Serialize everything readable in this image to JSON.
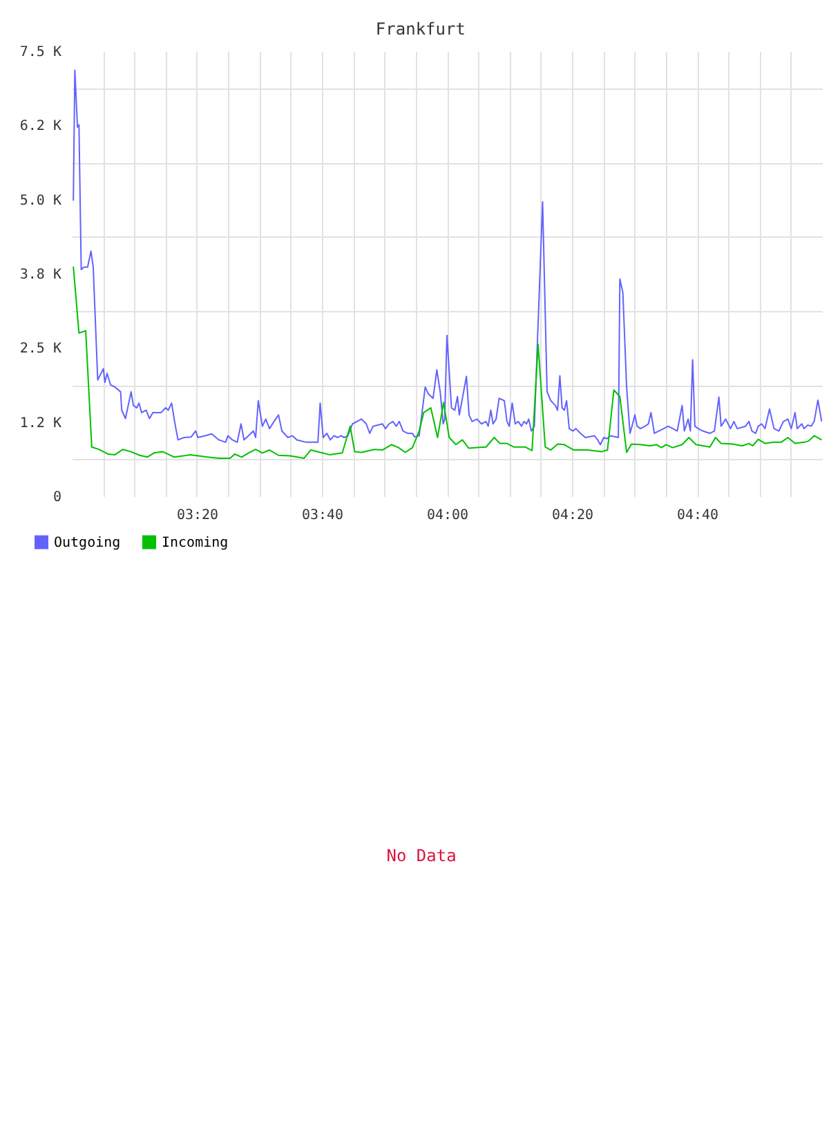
{
  "chart_data": [
    {
      "type": "line",
      "title": "Frankfurt",
      "xlim": [
        3.0,
        5.0
      ],
      "xticks": [
        {
          "value": 3.0833,
          "label": null
        },
        {
          "value": 3.1667,
          "label": null
        },
        {
          "value": 3.25,
          "label": null
        },
        {
          "value": 3.3333,
          "label": "03:20"
        },
        {
          "value": 3.4167,
          "label": null
        },
        {
          "value": 3.5,
          "label": null
        },
        {
          "value": 3.5833,
          "label": null
        },
        {
          "value": 3.6667,
          "label": "03:40"
        },
        {
          "value": 3.75,
          "label": null
        },
        {
          "value": 3.8333,
          "label": null
        },
        {
          "value": 3.9167,
          "label": null
        },
        {
          "value": 4.0,
          "label": "04:00"
        },
        {
          "value": 4.0833,
          "label": null
        },
        {
          "value": 4.1667,
          "label": null
        },
        {
          "value": 4.25,
          "label": null
        },
        {
          "value": 4.3333,
          "label": "04:20"
        },
        {
          "value": 4.4167,
          "label": null
        },
        {
          "value": 4.5,
          "label": null
        },
        {
          "value": 4.5833,
          "label": null
        },
        {
          "value": 4.6667,
          "label": "04:40"
        },
        {
          "value": 4.75,
          "label": null
        },
        {
          "value": 4.8333,
          "label": null
        },
        {
          "value": 4.9167,
          "label": null
        }
      ],
      "ylim": [
        0,
        7500
      ],
      "yticks": [
        0,
        {
          "value": 625,
          "label": null
        },
        {
          "value": 1250,
          "label": "1.2 K"
        },
        {
          "value": 1875,
          "label": null
        },
        {
          "value": 2500,
          "label": "2.5 K"
        },
        {
          "value": 3125,
          "label": null
        },
        {
          "value": 3750,
          "label": "3.8 K"
        },
        {
          "value": 4375,
          "label": null
        },
        {
          "value": 5000,
          "label": "5.0 K"
        },
        {
          "value": 5625,
          "label": null
        },
        {
          "value": 6250,
          "label": "6.2 K"
        },
        {
          "value": 6875,
          "label": null
        },
        {
          "value": 7500,
          "label": "7.5 K"
        }
      ],
      "grid": true,
      "legend": "bottom",
      "series": [
        {
          "name": "Outgoing",
          "color": "#6262ff",
          "x": [
            3.004,
            3.008,
            3.015,
            3.019,
            3.025,
            3.032,
            3.042,
            3.051,
            3.057,
            3.069,
            3.084,
            3.088,
            3.094,
            3.103,
            3.115,
            3.13,
            3.133,
            3.143,
            3.158,
            3.164,
            3.173,
            3.179,
            3.186,
            3.198,
            3.207,
            3.216,
            3.238,
            3.25,
            3.257,
            3.266,
            3.275,
            3.283,
            3.299,
            3.318,
            3.33,
            3.336,
            3.355,
            3.373,
            3.392,
            3.41,
            3.416,
            3.428,
            3.441,
            3.451,
            3.459,
            3.471,
            3.484,
            3.49,
            3.497,
            3.508,
            3.517,
            3.527,
            3.539,
            3.551,
            3.56,
            3.576,
            3.588,
            3.6,
            3.625,
            3.656,
            3.662,
            3.67,
            3.68,
            3.689,
            3.699,
            3.709,
            3.717,
            3.726,
            3.736,
            3.748,
            3.76,
            3.772,
            3.785,
            3.794,
            3.803,
            3.828,
            3.836,
            3.846,
            3.856,
            3.865,
            3.873,
            3.883,
            3.895,
            3.908,
            3.914,
            3.926,
            3.942,
            3.951,
            3.963,
            3.973,
            3.982,
            3.99,
            3.994,
            4.0,
            4.006,
            4.012,
            4.021,
            4.028,
            4.033,
            4.052,
            4.059,
            4.067,
            4.08,
            4.092,
            4.104,
            4.11,
            4.117,
            4.123,
            4.131,
            4.139,
            4.153,
            4.16,
            4.166,
            4.174,
            4.182,
            4.19,
            4.199,
            4.205,
            4.212,
            4.218,
            4.225,
            4.233,
            4.255,
            4.267,
            4.277,
            4.289,
            4.295,
            4.301,
            4.307,
            4.313,
            4.319,
            4.326,
            4.336,
            4.344,
            4.356,
            4.369,
            4.393,
            4.402,
            4.409,
            4.418,
            4.426,
            4.436,
            4.457,
            4.461,
            4.469,
            4.479,
            4.488,
            4.495,
            4.501,
            4.507,
            4.516,
            4.528,
            4.537,
            4.544,
            4.553,
            4.565,
            4.59,
            4.602,
            4.614,
            4.627,
            4.633,
            4.643,
            4.649,
            4.655,
            4.661,
            4.67,
            4.682,
            4.701,
            4.713,
            4.725,
            4.731,
            4.743,
            4.756,
            4.765,
            4.774,
            4.796,
            4.805,
            4.813,
            4.823,
            4.83,
            4.839,
            4.848,
            4.86,
            4.872,
            4.885,
            4.897,
            4.909,
            4.918,
            4.928,
            4.934,
            4.946,
            4.952,
            4.962,
            4.971,
            4.979,
            4.989,
            4.999
          ],
          "values": [
            4980,
            7180,
            6220,
            6260,
            3820,
            3860,
            3860,
            4130,
            3860,
            1960,
            2150,
            1920,
            2070,
            1880,
            1840,
            1760,
            1450,
            1310,
            1760,
            1530,
            1490,
            1570,
            1410,
            1450,
            1310,
            1410,
            1410,
            1490,
            1450,
            1570,
            1220,
            950,
            990,
            1000,
            1100,
            990,
            1020,
            1050,
            950,
            910,
            1020,
            950,
            910,
            1220,
            950,
            1020,
            1100,
            990,
            1610,
            1180,
            1300,
            1140,
            1260,
            1370,
            1100,
            990,
            1020,
            950,
            910,
            910,
            1570,
            990,
            1060,
            950,
            1020,
            990,
            1020,
            990,
            1020,
            1220,
            1260,
            1300,
            1220,
            1060,
            1180,
            1220,
            1140,
            1220,
            1260,
            1180,
            1260,
            1100,
            1060,
            1060,
            1000,
            1020,
            1840,
            1720,
            1650,
            2130,
            1760,
            1220,
            1300,
            2710,
            2110,
            1490,
            1450,
            1680,
            1370,
            2020,
            1370,
            1260,
            1300,
            1220,
            1260,
            1180,
            1450,
            1220,
            1300,
            1650,
            1610,
            1260,
            1180,
            1570,
            1220,
            1260,
            1180,
            1260,
            1220,
            1300,
            1100,
            1180,
            4960,
            1760,
            1610,
            1530,
            1450,
            2030,
            1490,
            1450,
            1610,
            1140,
            1100,
            1140,
            1060,
            990,
            1020,
            950,
            870,
            990,
            970,
            1020,
            990,
            3660,
            3430,
            1840,
            1060,
            1220,
            1370,
            1180,
            1140,
            1180,
            1220,
            1410,
            1060,
            1100,
            1180,
            1140,
            1100,
            1530,
            1100,
            1300,
            1100,
            2300,
            1180,
            1140,
            1100,
            1060,
            1100,
            1670,
            1180,
            1300,
            1140,
            1260,
            1140,
            1180,
            1260,
            1100,
            1060,
            1180,
            1220,
            1140,
            1470,
            1140,
            1100,
            1260,
            1300,
            1140,
            1410,
            1140,
            1220,
            1140,
            1200,
            1180,
            1260,
            1620,
            1260
          ]
        },
        {
          "name": "Incoming",
          "color": "#00c000",
          "x": [
            3.004,
            3.019,
            3.037,
            3.053,
            3.072,
            3.097,
            3.115,
            3.136,
            3.158,
            3.181,
            3.201,
            3.219,
            3.243,
            3.273,
            3.297,
            3.315,
            3.337,
            3.361,
            3.392,
            3.422,
            3.434,
            3.453,
            3.471,
            3.49,
            3.508,
            3.527,
            3.551,
            3.582,
            3.619,
            3.637,
            3.662,
            3.687,
            3.721,
            3.742,
            3.754,
            3.772,
            3.807,
            3.828,
            3.852,
            3.871,
            3.889,
            3.908,
            3.926,
            3.938,
            3.957,
            3.975,
            3.991,
            4.006,
            4.024,
            4.041,
            4.058,
            4.08,
            4.104,
            4.126,
            4.141,
            4.16,
            4.178,
            4.209,
            4.227,
            4.243,
            4.262,
            4.277,
            4.295,
            4.313,
            4.338,
            4.375,
            4.412,
            4.428,
            4.445,
            4.461,
            4.479,
            4.492,
            4.516,
            4.541,
            4.559,
            4.572,
            4.584,
            4.602,
            4.627,
            4.645,
            4.664,
            4.701,
            4.716,
            4.731,
            4.762,
            4.787,
            4.805,
            4.815,
            4.83,
            4.848,
            4.872,
            4.891,
            4.909,
            4.928,
            4.952,
            4.964,
            4.979,
            4.999
          ],
          "values": [
            3870,
            2750,
            2790,
            830,
            790,
            710,
            700,
            790,
            750,
            690,
            660,
            730,
            750,
            660,
            680,
            700,
            680,
            660,
            640,
            640,
            710,
            660,
            730,
            790,
            730,
            780,
            690,
            680,
            640,
            780,
            740,
            700,
            730,
            1180,
            750,
            740,
            790,
            780,
            870,
            820,
            740,
            820,
            1100,
            1410,
            1490,
            990,
            1580,
            990,
            870,
            950,
            810,
            820,
            830,
            990,
            890,
            890,
            830,
            830,
            770,
            2560,
            830,
            780,
            880,
            870,
            780,
            780,
            750,
            780,
            1790,
            1680,
            740,
            880,
            870,
            850,
            870,
            820,
            870,
            820,
            870,
            990,
            870,
            830,
            990,
            890,
            880,
            850,
            890,
            850,
            960,
            890,
            910,
            910,
            990,
            890,
            910,
            930,
            1020,
            950
          ]
        }
      ]
    },
    {
      "type": "other",
      "annotations": [
        "No Data"
      ]
    }
  ]
}
